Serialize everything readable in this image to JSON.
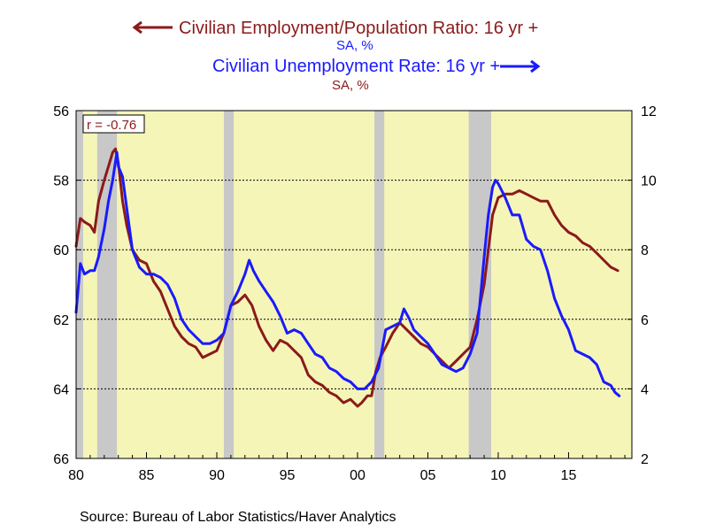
{
  "chart_data": {
    "type": "line",
    "legend": [
      {
        "label": "Civilian Employment/Population Ratio: 16 yr +",
        "unit": "SA, %",
        "direction": "left",
        "color": "#8b1a1a"
      },
      {
        "label": "Civilian Unemployment Rate: 16 yr +",
        "unit": "SA, %",
        "direction": "right",
        "color": "#1a1aff"
      }
    ],
    "correlation_label": "r = -0.76",
    "source": "Source:  Bureau of Labor Statistics/Haver Analytics",
    "x_axis": {
      "min": 1980,
      "max": 2019.5,
      "ticks": [
        1980,
        1985,
        1990,
        1995,
        2000,
        2005,
        2010,
        2015
      ],
      "tick_labels": [
        "80",
        "85",
        "90",
        "95",
        "00",
        "05",
        "10",
        "15"
      ]
    },
    "y_left": {
      "min": 56,
      "max": 66,
      "inverted": true,
      "ticks": [
        56,
        58,
        60,
        62,
        64,
        66
      ]
    },
    "y_right": {
      "min": 2,
      "max": 12,
      "ticks": [
        2,
        4,
        6,
        8,
        10,
        12
      ]
    },
    "background_color": "#f5f5b8",
    "recession_color": "#c8c8c8",
    "recessions": [
      [
        1980.0,
        1980.5
      ],
      [
        1981.5,
        1982.9
      ],
      [
        1990.5,
        1991.2
      ],
      [
        2001.2,
        2001.9
      ],
      [
        2007.9,
        2009.5
      ]
    ],
    "series": [
      {
        "name": "Civilian Employment/Population Ratio: 16 yr +",
        "axis": "left",
        "color": "#8b1a1a",
        "x": [
          1980.0,
          1980.3,
          1980.6,
          1981.0,
          1981.3,
          1981.6,
          1982.0,
          1982.3,
          1982.6,
          1982.8,
          1983.0,
          1983.3,
          1983.6,
          1984.0,
          1984.5,
          1985.0,
          1985.5,
          1986.0,
          1986.5,
          1987.0,
          1987.5,
          1988.0,
          1988.5,
          1989.0,
          1989.5,
          1990.0,
          1990.5,
          1991.0,
          1991.5,
          1992.0,
          1992.5,
          1993.0,
          1993.5,
          1994.0,
          1994.5,
          1995.0,
          1995.5,
          1996.0,
          1996.5,
          1997.0,
          1997.5,
          1998.0,
          1998.5,
          1999.0,
          1999.5,
          2000.0,
          2000.3,
          2000.7,
          2001.0,
          2001.3,
          2001.6,
          2002.0,
          2002.5,
          2003.0,
          2003.5,
          2004.0,
          2004.5,
          2005.0,
          2005.5,
          2006.0,
          2006.5,
          2007.0,
          2007.5,
          2008.0,
          2008.5,
          2009.0,
          2009.3,
          2009.6,
          2010.0,
          2010.5,
          2011.0,
          2011.5,
          2012.0,
          2012.5,
          2013.0,
          2013.5,
          2014.0,
          2014.5,
          2015.0,
          2015.5,
          2016.0,
          2016.5,
          2017.0,
          2017.5,
          2018.0,
          2018.5
        ],
        "values": [
          59.9,
          59.1,
          59.2,
          59.3,
          59.5,
          58.6,
          58.0,
          57.6,
          57.2,
          57.1,
          57.5,
          58.6,
          59.3,
          60.0,
          60.3,
          60.4,
          60.9,
          61.2,
          61.7,
          62.2,
          62.5,
          62.7,
          62.8,
          63.1,
          63.0,
          62.9,
          62.4,
          61.6,
          61.5,
          61.3,
          61.6,
          62.2,
          62.6,
          62.9,
          62.6,
          62.7,
          62.9,
          63.1,
          63.6,
          63.8,
          63.9,
          64.1,
          64.2,
          64.4,
          64.3,
          64.5,
          64.4,
          64.2,
          64.2,
          63.5,
          63.1,
          62.8,
          62.4,
          62.1,
          62.3,
          62.5,
          62.7,
          62.8,
          63.0,
          63.2,
          63.4,
          63.2,
          63.0,
          62.8,
          62.0,
          61.0,
          60.0,
          59.0,
          58.5,
          58.4,
          58.4,
          58.3,
          58.4,
          58.5,
          58.6,
          58.6,
          59.0,
          59.3,
          59.5,
          59.6,
          59.8,
          59.9,
          60.1,
          60.3,
          60.5,
          60.6
        ]
      },
      {
        "name": "Civilian Unemployment Rate: 16 yr +",
        "axis": "right",
        "color": "#1a1aff",
        "x": [
          1980.0,
          1980.3,
          1980.6,
          1981.0,
          1981.3,
          1981.6,
          1982.0,
          1982.3,
          1982.6,
          1982.9,
          1983.0,
          1983.3,
          1983.6,
          1984.0,
          1984.5,
          1985.0,
          1985.5,
          1986.0,
          1986.5,
          1987.0,
          1987.5,
          1988.0,
          1988.5,
          1989.0,
          1989.5,
          1990.0,
          1990.5,
          1991.0,
          1991.5,
          1992.0,
          1992.3,
          1992.6,
          1993.0,
          1993.5,
          1994.0,
          1994.5,
          1995.0,
          1995.5,
          1996.0,
          1996.5,
          1997.0,
          1997.5,
          1998.0,
          1998.5,
          1999.0,
          1999.5,
          2000.0,
          2000.5,
          2001.0,
          2001.5,
          2002.0,
          2002.5,
          2003.0,
          2003.3,
          2003.7,
          2004.0,
          2004.5,
          2005.0,
          2005.5,
          2006.0,
          2006.5,
          2007.0,
          2007.5,
          2008.0,
          2008.5,
          2009.0,
          2009.3,
          2009.6,
          2009.8,
          2010.0,
          2010.5,
          2011.0,
          2011.5,
          2012.0,
          2012.5,
          2013.0,
          2013.5,
          2014.0,
          2014.5,
          2015.0,
          2015.5,
          2016.0,
          2016.5,
          2017.0,
          2017.5,
          2018.0,
          2018.3,
          2018.6
        ],
        "values": [
          6.2,
          7.6,
          7.3,
          7.4,
          7.4,
          7.8,
          8.6,
          9.4,
          10.0,
          10.8,
          10.4,
          10.1,
          9.2,
          8.0,
          7.5,
          7.3,
          7.3,
          7.2,
          7.0,
          6.6,
          6.0,
          5.7,
          5.5,
          5.3,
          5.3,
          5.4,
          5.6,
          6.4,
          6.8,
          7.3,
          7.7,
          7.4,
          7.1,
          6.8,
          6.5,
          6.1,
          5.6,
          5.7,
          5.6,
          5.3,
          5.0,
          4.9,
          4.6,
          4.5,
          4.3,
          4.2,
          4.0,
          4.0,
          4.2,
          4.6,
          5.7,
          5.8,
          5.9,
          6.3,
          6.0,
          5.7,
          5.5,
          5.3,
          5.0,
          4.7,
          4.6,
          4.5,
          4.6,
          5.0,
          5.6,
          7.8,
          9.0,
          9.8,
          10.0,
          9.9,
          9.5,
          9.0,
          9.0,
          8.3,
          8.1,
          8.0,
          7.4,
          6.6,
          6.1,
          5.7,
          5.1,
          5.0,
          4.9,
          4.7,
          4.2,
          4.1,
          3.9,
          3.8
        ]
      }
    ]
  }
}
